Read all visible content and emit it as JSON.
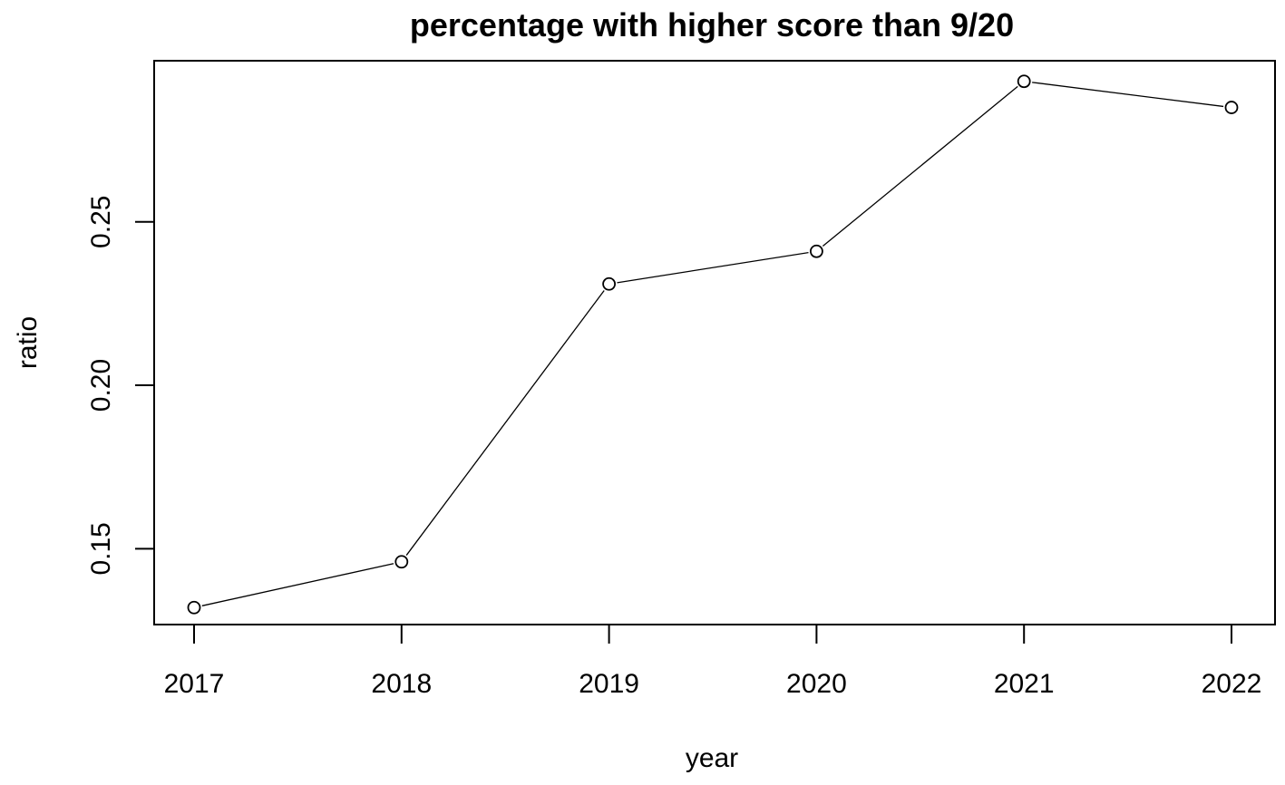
{
  "chart_data": {
    "type": "line",
    "title": "percentage with higher score than 9/20",
    "xlabel": "year",
    "ylabel": "ratio",
    "x": [
      2017,
      2018,
      2019,
      2020,
      2021,
      2022
    ],
    "series": [
      {
        "values": [
          0.132,
          0.146,
          0.231,
          0.241,
          0.293,
          0.285
        ]
      }
    ],
    "xticks": [
      "2017",
      "2018",
      "2019",
      "2020",
      "2021",
      "2022"
    ],
    "yticks": [
      0.15,
      0.2,
      0.25
    ],
    "ytick_labels": [
      "0.15",
      "0.20",
      "0.25"
    ],
    "ylim": [
      0.1268,
      0.2993
    ],
    "grid": false,
    "legend": "none",
    "marker": "open-circle",
    "line_color": "#000000"
  }
}
